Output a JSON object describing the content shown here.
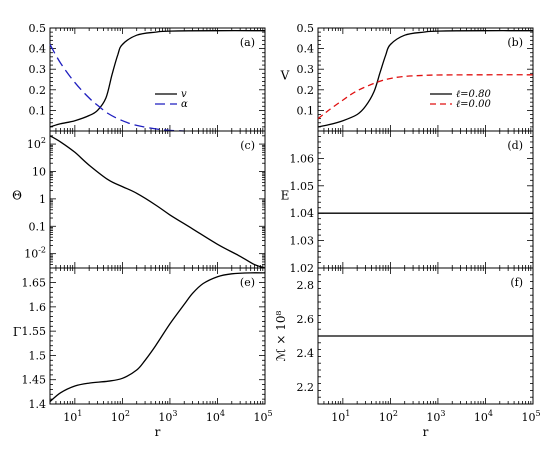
{
  "chart_data": [
    {
      "id": "a",
      "type": "line",
      "tag": "(a)",
      "xlabel": "",
      "ylabel": "",
      "xscale": "log",
      "yscale": "linear",
      "xlim": [
        3,
        100000
      ],
      "ylim": [
        0,
        0.5
      ],
      "yticks": [
        0.1,
        0.2,
        0.3,
        0.4,
        0.5
      ],
      "legend": "center-right",
      "series": [
        {
          "name": "v",
          "color": "#000000",
          "dash": "solid",
          "x": [
            3,
            5,
            10,
            20,
            30,
            45,
            60,
            80,
            100,
            200,
            500,
            1000,
            10000,
            100000
          ],
          "y": [
            0.02,
            0.035,
            0.05,
            0.075,
            0.1,
            0.16,
            0.27,
            0.37,
            0.42,
            0.465,
            0.48,
            0.485,
            0.487,
            0.487
          ]
        },
        {
          "name": "α",
          "color": "#1f1fbf",
          "dash": "long",
          "x": [
            3,
            5,
            10,
            20,
            30,
            50,
            100,
            200,
            500,
            1000,
            2000
          ],
          "y": [
            0.42,
            0.33,
            0.235,
            0.16,
            0.125,
            0.085,
            0.05,
            0.027,
            0.01,
            0.003,
            0.0
          ]
        }
      ]
    },
    {
      "id": "b",
      "type": "line",
      "tag": "(b)",
      "xlabel": "",
      "ylabel": "V",
      "xscale": "log",
      "yscale": "linear",
      "xlim": [
        3,
        100000
      ],
      "ylim": [
        0,
        0.5
      ],
      "yticks": [
        0.1,
        0.2,
        0.3,
        0.4,
        0.5
      ],
      "legend": "center-right",
      "series": [
        {
          "name": "ℓ=0.80",
          "color": "#000000",
          "dash": "solid",
          "x": [
            3,
            5,
            10,
            20,
            30,
            45,
            60,
            80,
            100,
            200,
            500,
            1000,
            10000,
            100000
          ],
          "y": [
            0.02,
            0.03,
            0.05,
            0.08,
            0.12,
            0.19,
            0.28,
            0.37,
            0.42,
            0.465,
            0.48,
            0.485,
            0.487,
            0.487
          ]
        },
        {
          "name": "ℓ=0.00",
          "color": "#e01010",
          "dash": "dash",
          "x": [
            3,
            5,
            10,
            20,
            50,
            100,
            200,
            500,
            1000,
            10000,
            100000
          ],
          "y": [
            0.06,
            0.1,
            0.15,
            0.195,
            0.235,
            0.255,
            0.265,
            0.27,
            0.272,
            0.273,
            0.273
          ]
        }
      ]
    },
    {
      "id": "c",
      "type": "line",
      "tag": "(c)",
      "xlabel": "",
      "ylabel": "Θ",
      "xscale": "log",
      "yscale": "log",
      "xlim": [
        3,
        100000
      ],
      "ylim": [
        0.003,
        300
      ],
      "yticks": [
        {
          "v": 100,
          "base": "10",
          "exp": "2"
        },
        {
          "v": 10,
          "t": "10"
        },
        {
          "v": 1,
          "t": "1"
        },
        {
          "v": 0.1,
          "t": "0.1"
        },
        {
          "v": 0.01,
          "base": "10",
          "exp": "-2"
        }
      ],
      "series": [
        {
          "name": "",
          "color": "#000000",
          "dash": "solid",
          "x": [
            3,
            5,
            10,
            20,
            50,
            100,
            200,
            500,
            1000,
            3000,
            10000,
            30000,
            60000,
            100000
          ],
          "y": [
            200,
            120,
            50,
            17,
            5,
            2.8,
            1.6,
            0.6,
            0.26,
            0.08,
            0.022,
            0.008,
            0.004,
            0.003
          ]
        }
      ]
    },
    {
      "id": "d",
      "type": "line",
      "tag": "(d)",
      "xlabel": "",
      "ylabel": "E",
      "xscale": "log",
      "yscale": "linear",
      "xlim": [
        3,
        100000
      ],
      "ylim": [
        1.02,
        1.07
      ],
      "yticks": [
        1.02,
        1.03,
        1.04,
        1.05,
        1.06
      ],
      "series": [
        {
          "name": "",
          "color": "#000000",
          "dash": "solid",
          "x": [
            3,
            100000
          ],
          "y": [
            1.04,
            1.04
          ]
        }
      ]
    },
    {
      "id": "e",
      "type": "line",
      "tag": "(e)",
      "xlabel": "r",
      "ylabel": "Γ",
      "xscale": "log",
      "yscale": "linear",
      "xlim": [
        3,
        100000
      ],
      "ylim": [
        1.4,
        1.68
      ],
      "yticks": [
        1.4,
        1.45,
        1.5,
        1.55,
        1.6,
        1.65
      ],
      "xticks": [
        {
          "v": 10,
          "base": "10",
          "exp": "1"
        },
        {
          "v": 100,
          "base": "10",
          "exp": "2"
        },
        {
          "v": 1000,
          "base": "10",
          "exp": "3"
        },
        {
          "v": 10000,
          "base": "10",
          "exp": "4"
        },
        {
          "v": 100000,
          "base": "10",
          "exp": "5"
        }
      ],
      "series": [
        {
          "name": "",
          "color": "#000000",
          "dash": "solid",
          "x": [
            3,
            5,
            10,
            20,
            50,
            100,
            200,
            300,
            500,
            1000,
            2000,
            3000,
            5000,
            10000,
            20000,
            50000,
            100000
          ],
          "y": [
            1.405,
            1.423,
            1.437,
            1.443,
            1.447,
            1.453,
            1.47,
            1.49,
            1.52,
            1.565,
            1.605,
            1.628,
            1.648,
            1.662,
            1.668,
            1.67,
            1.67
          ]
        }
      ]
    },
    {
      "id": "f",
      "type": "line",
      "tag": "(f)",
      "xlabel": "r",
      "ylabel": "ℳ × 10⁸",
      "xscale": "log",
      "yscale": "linear",
      "xlim": [
        3,
        100000
      ],
      "ylim": [
        2.1,
        2.9
      ],
      "yticks": [
        2.2,
        2.4,
        2.6,
        2.8
      ],
      "xticks": [
        {
          "v": 10,
          "base": "10",
          "exp": "1"
        },
        {
          "v": 100,
          "base": "10",
          "exp": "2"
        },
        {
          "v": 1000,
          "base": "10",
          "exp": "3"
        },
        {
          "v": 10000,
          "base": "10",
          "exp": "4"
        },
        {
          "v": 100000,
          "base": "10",
          "exp": "5"
        }
      ],
      "series": [
        {
          "name": "",
          "color": "#000000",
          "dash": "solid",
          "x": [
            3,
            100000
          ],
          "y": [
            2.5,
            2.5
          ]
        }
      ]
    }
  ]
}
